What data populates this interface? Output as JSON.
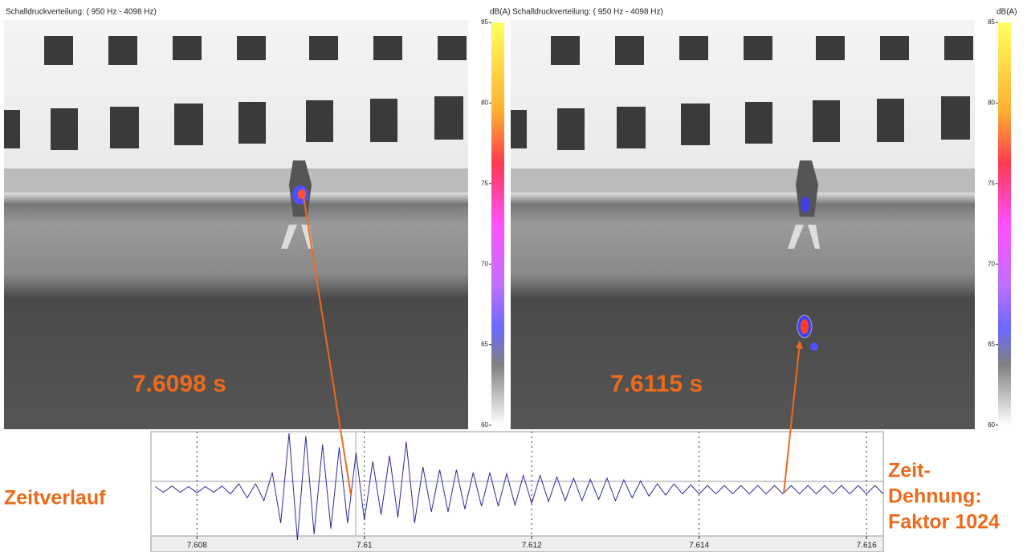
{
  "panels": [
    {
      "title": "Schalldruckverteilung: ( 950 Hz - 4098 Hz)",
      "unit": "dB(A)",
      "time_label": "7.6098 s",
      "colorbar": {
        "ylim": [
          60,
          85
        ],
        "yticks": [
          60,
          65,
          70,
          75,
          80,
          85
        ]
      }
    },
    {
      "title": "Schalldruckverteilung: ( 950 Hz - 4098 Hz)",
      "unit": "dB(A)",
      "time_label": "7.6115 s",
      "colorbar": {
        "ylim": [
          60,
          85
        ],
        "yticks": [
          60,
          65,
          70,
          75,
          80,
          85
        ]
      }
    }
  ],
  "left_label": "Zeitverlauf",
  "right_label": [
    "Zeit-",
    "Dehnung:",
    "Faktor 1024"
  ],
  "chart_data": {
    "type": "line",
    "color": "#2a2aa0",
    "x": [
      7.6075,
      7.6076,
      7.6077,
      7.6078,
      7.6079,
      7.608,
      7.6081,
      7.6082,
      7.6083,
      7.6084,
      7.6085,
      7.6086,
      7.6087,
      7.6088,
      7.6089,
      7.609,
      7.6091,
      7.6092,
      7.6093,
      7.6094,
      7.6095,
      7.6096,
      7.6097,
      7.6098,
      7.6099,
      7.61,
      7.6101,
      7.6102,
      7.6103,
      7.6104,
      7.6105,
      7.6106,
      7.6107,
      7.6108,
      7.6109,
      7.611,
      7.6111,
      7.6112,
      7.6113,
      7.6114,
      7.6115,
      7.6116,
      7.6117,
      7.6118,
      7.6119,
      7.612,
      7.6121,
      7.6122,
      7.6123,
      7.6124,
      7.6125,
      7.6126,
      7.6127,
      7.6128,
      7.6129,
      7.613,
      7.6131,
      7.6132,
      7.6133,
      7.6134,
      7.6135,
      7.6136,
      7.6137,
      7.6138,
      7.6139,
      7.614,
      7.6141,
      7.6142,
      7.6143,
      7.6144,
      7.6145,
      7.6146,
      7.6147,
      7.6148,
      7.6149,
      7.615,
      7.6151,
      7.6152,
      7.6153,
      7.6154,
      7.6155,
      7.6156,
      7.6157,
      7.6158,
      7.6159,
      7.616,
      7.6161,
      7.6162
    ],
    "values": [
      0.05,
      -0.05,
      0.06,
      -0.05,
      0.05,
      -0.06,
      0.05,
      -0.05,
      0.06,
      -0.08,
      0.1,
      -0.15,
      0.1,
      -0.2,
      0.3,
      -0.6,
      1.0,
      -0.9,
      0.95,
      -0.8,
      0.8,
      -0.7,
      0.75,
      -0.6,
      0.65,
      -0.55,
      0.5,
      -0.45,
      0.6,
      -0.5,
      0.85,
      -0.6,
      0.4,
      -0.4,
      0.35,
      -0.4,
      0.35,
      -0.35,
      0.3,
      -0.3,
      0.3,
      -0.3,
      0.28,
      -0.28,
      0.25,
      -0.25,
      0.25,
      -0.22,
      0.22,
      -0.2,
      0.2,
      -0.2,
      0.18,
      -0.18,
      0.2,
      -0.2,
      0.17,
      -0.15,
      0.15,
      -0.12,
      0.1,
      -0.1,
      0.1,
      -0.08,
      0.08,
      -0.08,
      0.07,
      -0.08,
      0.07,
      -0.08,
      0.07,
      -0.08,
      0.07,
      -0.08,
      0.07,
      -0.08,
      0.07,
      -0.08,
      0.07,
      -0.08,
      0.07,
      -0.08,
      0.07,
      -0.08,
      0.07,
      -0.08,
      0.07,
      -0.08
    ],
    "xlim": [
      7.60745,
      7.6162
    ],
    "ylim": [
      -1,
      1
    ],
    "xticks": [
      7.608,
      7.61,
      7.612,
      7.614,
      7.616
    ]
  }
}
